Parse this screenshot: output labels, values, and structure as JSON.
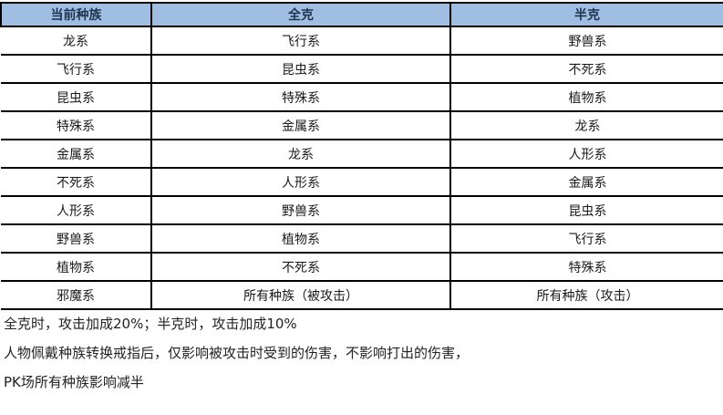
{
  "table": {
    "headers": [
      "当前种族",
      "全克",
      "半克"
    ],
    "rows": [
      [
        "龙系",
        "飞行系",
        "野兽系"
      ],
      [
        "飞行系",
        "昆虫系",
        "不死系"
      ],
      [
        "昆虫系",
        "特殊系",
        "植物系"
      ],
      [
        "特殊系",
        "金属系",
        "龙系"
      ],
      [
        "金属系",
        "龙系",
        "人形系"
      ],
      [
        "不死系",
        "人形系",
        "金属系"
      ],
      [
        "人形系",
        "野兽系",
        "昆虫系"
      ],
      [
        "野兽系",
        "植物系",
        "飞行系"
      ],
      [
        "植物系",
        "不死系",
        "特殊系"
      ],
      [
        "邪魔系",
        "所有种族（被攻击）",
        "所有种族（攻击）"
      ]
    ]
  },
  "notes": [
    "全克时，攻击加成20%；半克时，攻击加成10%",
    "人物佩戴种族转换戒指后，仅影响被攻击时受到的伤害，不影响打出的伤害，",
    "PK场所有种族影响减半"
  ],
  "colors": {
    "header_bg": "#9FBEE2",
    "border": "#000000",
    "header_text": "#1E3452",
    "body_text": "#1A1A1A"
  }
}
